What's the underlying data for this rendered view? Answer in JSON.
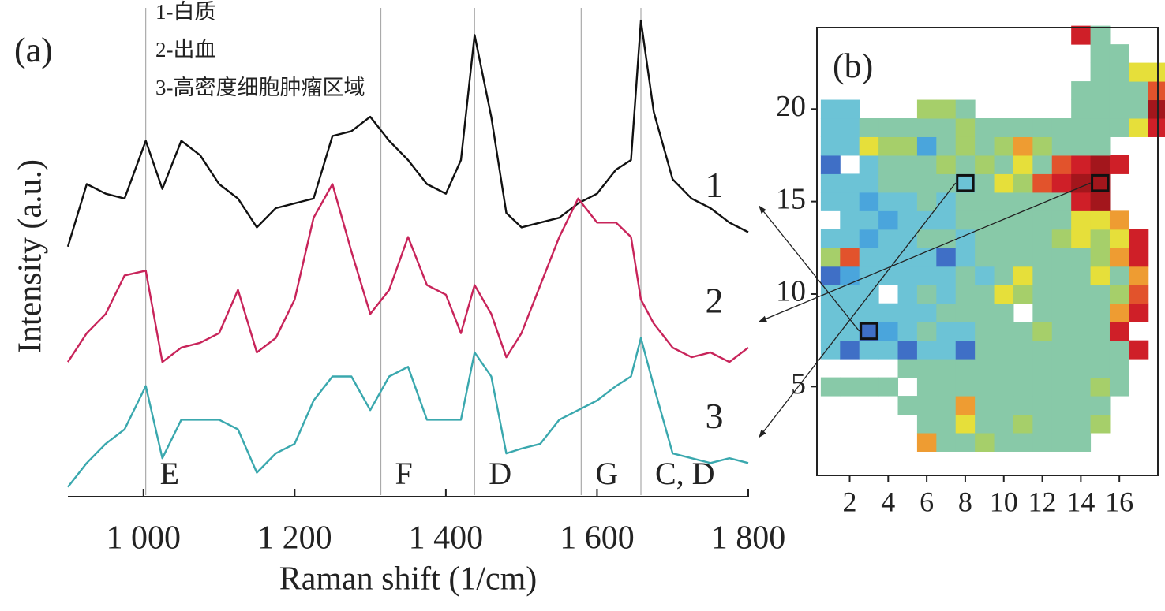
{
  "chart_data": [
    {
      "type": "line",
      "panel_label": "(a)",
      "xlabel": "Raman shift (1/cm)",
      "ylabel": "Intensity (a.u.)",
      "legend": [
        "1-白质",
        "2-出血",
        "3-高密度细胞肿瘤区域"
      ],
      "x": [
        900,
        925,
        950,
        975,
        1003,
        1025,
        1050,
        1075,
        1100,
        1125,
        1150,
        1175,
        1200,
        1225,
        1250,
        1275,
        1300,
        1325,
        1350,
        1375,
        1400,
        1420,
        1438,
        1460,
        1480,
        1500,
        1525,
        1550,
        1575,
        1600,
        1625,
        1645,
        1658,
        1675,
        1700,
        1725,
        1750,
        1775,
        1800
      ],
      "xlim": [
        900,
        1800
      ],
      "xticks": [
        {
          "value": 1000,
          "label": "1 000"
        },
        {
          "value": 1200,
          "label": "1 200"
        },
        {
          "value": 1400,
          "label": "1 400"
        },
        {
          "value": 1600,
          "label": "1 600"
        },
        {
          "value": 1800,
          "label": "1 800"
        }
      ],
      "ylim": [
        0,
        100
      ],
      "series": [
        {
          "name": "1",
          "color": "#111111",
          "values": [
            52,
            65,
            63,
            62,
            74,
            64,
            74,
            71,
            65,
            62,
            56,
            60,
            61,
            62,
            75,
            76,
            79,
            74,
            70,
            65,
            63,
            70,
            96,
            79,
            59,
            56,
            57,
            58,
            61,
            63,
            68,
            70,
            99,
            80,
            66,
            62,
            60,
            57,
            55
          ]
        },
        {
          "name": "2",
          "color": "#c8245a",
          "values": [
            28,
            34,
            38,
            46,
            47,
            28,
            31,
            32,
            34,
            43,
            30,
            33,
            41,
            58,
            65,
            51,
            38,
            43,
            54,
            44,
            42,
            34,
            44,
            38,
            29,
            34,
            44,
            54,
            62,
            57,
            57,
            54,
            41,
            36,
            31,
            29,
            30,
            28,
            31
          ]
        },
        {
          "name": "3",
          "color": "#3aa8ae",
          "values": [
            2,
            7,
            11,
            14,
            23,
            8,
            16,
            16,
            16,
            14,
            5,
            9,
            11,
            20,
            25,
            25,
            18,
            25,
            27,
            16,
            16,
            16,
            30,
            25,
            9,
            10,
            11,
            16,
            18,
            20,
            23,
            25,
            33,
            23,
            9,
            8,
            7,
            8,
            7
          ]
        }
      ],
      "bands": [
        {
          "x": 1003,
          "label": "E"
        },
        {
          "x": 1314,
          "label": "F"
        },
        {
          "x": 1438,
          "label": "D"
        },
        {
          "x": 1579,
          "label": "G"
        },
        {
          "x": 1658,
          "label": "C, D"
        }
      ]
    },
    {
      "type": "heatmap",
      "panel_label": "(b)",
      "x": [
        1,
        2,
        3,
        4,
        5,
        6,
        7,
        8,
        9,
        10,
        11,
        12,
        13,
        14,
        15,
        16,
        17,
        18
      ],
      "y": [
        1,
        2,
        3,
        4,
        5,
        6,
        7,
        8,
        9,
        10,
        11,
        12,
        13,
        14,
        15,
        16,
        17,
        18,
        19,
        20,
        21,
        22,
        23,
        24
      ],
      "xlim": [
        0.3,
        18
      ],
      "ylim": [
        24.4,
        0.2
      ],
      "xticks": [
        2,
        4,
        6,
        8,
        10,
        12,
        14,
        16
      ],
      "yticks": [
        5,
        10,
        15,
        20
      ],
      "clim": [
        1,
        10
      ],
      "colorscale": [
        "#3f6fc6",
        "#4aa5dc",
        "#6cc3d6",
        "#88c9a8",
        "#a6cf6a",
        "#e6df3a",
        "#ee9c32",
        "#e2532c",
        "#cf1f28",
        "#a3161c"
      ],
      "z": [
        [
          null,
          null,
          null,
          null,
          null,
          null,
          null,
          null,
          null,
          null,
          null,
          null,
          null,
          null,
          null,
          null,
          null,
          null
        ],
        [
          null,
          null,
          null,
          null,
          null,
          7,
          4,
          4,
          5,
          4,
          4,
          4,
          4,
          4,
          null,
          null,
          null,
          null
        ],
        [
          null,
          null,
          null,
          null,
          null,
          4,
          4,
          6,
          4,
          4,
          5,
          4,
          4,
          4,
          5,
          null,
          null,
          null
        ],
        [
          null,
          null,
          null,
          null,
          4,
          4,
          4,
          7,
          4,
          4,
          4,
          4,
          4,
          4,
          4,
          null,
          null,
          null
        ],
        [
          4,
          4,
          4,
          4,
          null,
          4,
          4,
          4,
          4,
          4,
          4,
          4,
          4,
          4,
          5,
          4,
          null,
          null
        ],
        [
          null,
          null,
          null,
          null,
          4,
          4,
          4,
          4,
          4,
          4,
          4,
          4,
          4,
          4,
          4,
          4,
          null,
          null
        ],
        [
          3,
          1,
          3,
          3,
          1,
          3,
          3,
          1,
          4,
          4,
          4,
          4,
          4,
          4,
          4,
          4,
          9,
          null
        ],
        [
          3,
          3,
          1,
          2,
          3,
          4,
          3,
          3,
          4,
          4,
          4,
          5,
          4,
          4,
          4,
          9,
          null,
          null
        ],
        [
          3,
          3,
          3,
          3,
          3,
          3,
          4,
          4,
          4,
          4,
          null,
          4,
          4,
          4,
          4,
          7,
          9,
          null
        ],
        [
          3,
          3,
          3,
          null,
          3,
          4,
          3,
          4,
          4,
          6,
          5,
          4,
          4,
          4,
          4,
          5,
          8,
          null
        ],
        [
          1,
          2,
          3,
          3,
          3,
          3,
          3,
          4,
          3,
          4,
          6,
          4,
          4,
          4,
          6,
          4,
          7,
          null
        ],
        [
          5,
          8,
          3,
          3,
          3,
          3,
          1,
          3,
          4,
          4,
          4,
          4,
          4,
          4,
          5,
          7,
          9,
          null
        ],
        [
          3,
          3,
          2,
          3,
          3,
          4,
          4,
          3,
          4,
          4,
          4,
          4,
          5,
          6,
          5,
          6,
          9,
          null
        ],
        [
          null,
          3,
          3,
          2,
          3,
          3,
          3,
          4,
          4,
          4,
          4,
          4,
          4,
          6,
          6,
          7,
          null,
          null
        ],
        [
          3,
          3,
          2,
          3,
          3,
          4,
          3,
          4,
          4,
          4,
          4,
          4,
          4,
          9,
          10,
          null,
          null,
          null
        ],
        [
          3,
          3,
          3,
          4,
          4,
          4,
          4,
          3,
          4,
          6,
          5,
          8,
          9,
          10,
          10,
          null,
          null,
          null
        ],
        [
          1,
          null,
          3,
          4,
          4,
          4,
          5,
          4,
          5,
          4,
          6,
          4,
          8,
          9,
          10,
          9,
          null,
          null
        ],
        [
          3,
          3,
          6,
          5,
          5,
          2,
          4,
          5,
          4,
          5,
          7,
          5,
          4,
          4,
          4,
          null,
          null,
          null
        ],
        [
          3,
          3,
          4,
          4,
          4,
          4,
          4,
          5,
          4,
          4,
          4,
          4,
          4,
          4,
          4,
          4,
          6,
          9
        ],
        [
          3,
          3,
          null,
          null,
          null,
          5,
          5,
          4,
          null,
          null,
          null,
          null,
          null,
          4,
          4,
          4,
          4,
          10
        ],
        [
          null,
          null,
          null,
          null,
          null,
          null,
          null,
          null,
          null,
          null,
          null,
          null,
          null,
          4,
          4,
          4,
          4,
          8
        ],
        [
          null,
          null,
          null,
          null,
          null,
          null,
          null,
          null,
          null,
          null,
          null,
          null,
          null,
          null,
          4,
          4,
          6,
          6
        ],
        [
          null,
          null,
          null,
          null,
          null,
          null,
          null,
          null,
          null,
          null,
          null,
          null,
          null,
          null,
          4,
          4,
          null,
          null
        ],
        [
          null,
          null,
          null,
          null,
          null,
          null,
          null,
          null,
          null,
          null,
          null,
          null,
          null,
          9,
          4,
          null,
          null,
          null
        ]
      ],
      "highlights": [
        {
          "x": 3,
          "y": 8
        },
        {
          "x": 15,
          "y": 16
        },
        {
          "x": 8,
          "y": 16
        }
      ]
    }
  ]
}
